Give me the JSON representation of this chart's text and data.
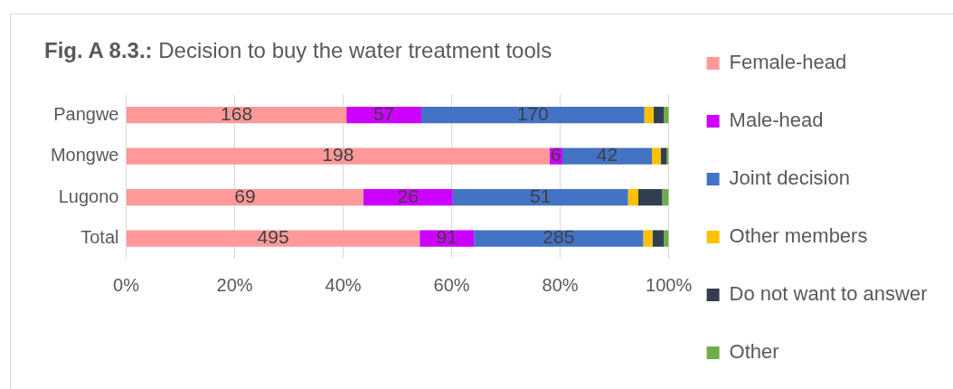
{
  "chart_data": {
    "type": "bar",
    "title": "Fig. A 8.3.: Decision to buy the water treatment tools",
    "orientation": "horizontal",
    "stacked": true,
    "categories": [
      "Pangwe",
      "Mongwe",
      "Lugono",
      "Total"
    ],
    "series": [
      {
        "name": "Female-head",
        "color": "#ff9999",
        "values": [
          40.6,
          78.0,
          43.7,
          54.1
        ]
      },
      {
        "name": "Male-head",
        "color": "#cc00ff",
        "values": [
          13.8,
          2.4,
          16.5,
          10.0
        ]
      },
      {
        "name": "Joint decision",
        "color": "#4472c4",
        "values": [
          41.1,
          16.5,
          32.3,
          31.2
        ]
      },
      {
        "name": "Other members",
        "color": "#ffc000",
        "values": [
          1.7,
          1.6,
          1.9,
          1.7
        ]
      },
      {
        "name": "Do not want to answer",
        "color": "#333f50",
        "values": [
          1.9,
          1.1,
          4.4,
          2.1
        ]
      },
      {
        "name": "Other",
        "color": "#70ad47",
        "values": [
          0.9,
          0.4,
          1.2,
          0.9
        ]
      }
    ],
    "annotations": [
      "168",
      "57",
      "170",
      "198",
      "6",
      "42",
      "69",
      "26",
      "51",
      "495",
      "91",
      "285"
    ],
    "xlim": [
      0,
      100
    ],
    "xticks": [
      {
        "value": 0,
        "label": "0%"
      },
      {
        "value": 20,
        "label": "20%"
      },
      {
        "value": 40,
        "label": "40%"
      },
      {
        "value": 60,
        "label": "60%"
      },
      {
        "value": 80,
        "label": "80%"
      },
      {
        "value": 100,
        "label": "100%"
      }
    ],
    "grid": "x",
    "legend": "right"
  }
}
